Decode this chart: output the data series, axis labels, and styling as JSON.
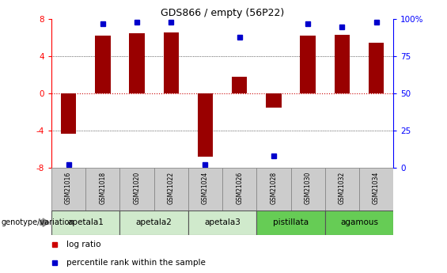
{
  "title": "GDS866 / empty (56P22)",
  "samples": [
    "GSM21016",
    "GSM21018",
    "GSM21020",
    "GSM21022",
    "GSM21024",
    "GSM21026",
    "GSM21028",
    "GSM21030",
    "GSM21032",
    "GSM21034"
  ],
  "log_ratios": [
    -4.3,
    6.2,
    6.5,
    6.6,
    -6.8,
    1.8,
    -1.5,
    6.2,
    6.3,
    5.5
  ],
  "percentile_ranks": [
    2,
    97,
    98,
    98,
    2,
    88,
    8,
    97,
    95,
    98
  ],
  "ylim": [
    -8,
    8
  ],
  "yticks_left": [
    -8,
    -4,
    0,
    4,
    8
  ],
  "yticks_right_vals": [
    0,
    25,
    50,
    75,
    100
  ],
  "yticks_right_pos": [
    -8,
    -4,
    0,
    4,
    8
  ],
  "groups": [
    {
      "label": "apetala1",
      "start": 0,
      "end": 2,
      "color": "#d0eacc"
    },
    {
      "label": "apetala2",
      "start": 2,
      "end": 4,
      "color": "#d0eacc"
    },
    {
      "label": "apetala3",
      "start": 4,
      "end": 6,
      "color": "#d0eacc"
    },
    {
      "label": "pistillata",
      "start": 6,
      "end": 8,
      "color": "#66cc55"
    },
    {
      "label": "agamous",
      "start": 8,
      "end": 10,
      "color": "#66cc55"
    }
  ],
  "bar_color": "#990000",
  "dot_color": "#0000cc",
  "zero_line_color": "#cc0000",
  "grid_color": "#000000",
  "sample_box_color": "#cccccc",
  "genotype_arrow_label": "genotype/variation"
}
